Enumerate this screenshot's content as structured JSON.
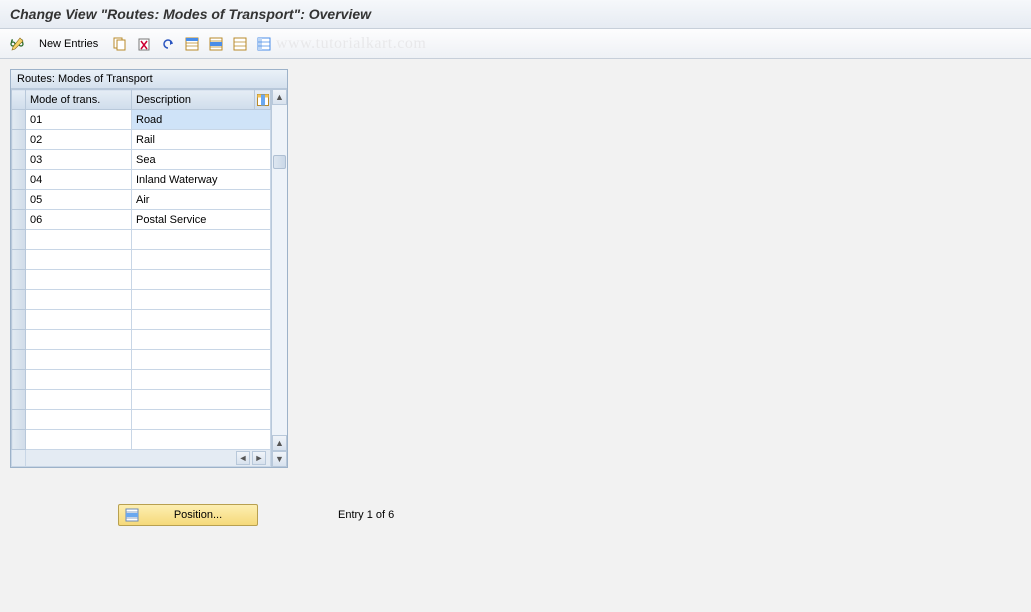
{
  "title": "Change View \"Routes: Modes of Transport\": Overview",
  "toolbar": {
    "new_entries_label": "New Entries"
  },
  "watermark": "www.tutorialkart.com",
  "table": {
    "caption": "Routes: Modes of Transport",
    "columns": {
      "col1": "Mode of trans.",
      "col2": "Description"
    },
    "rows": [
      {
        "mode": "01",
        "desc": "Road",
        "selected": true
      },
      {
        "mode": "02",
        "desc": "Rail",
        "selected": false
      },
      {
        "mode": "03",
        "desc": "Sea",
        "selected": false
      },
      {
        "mode": "04",
        "desc": "Inland Waterway",
        "selected": false
      },
      {
        "mode": "05",
        "desc": "Air",
        "selected": false
      },
      {
        "mode": "06",
        "desc": "Postal Service",
        "selected": false
      }
    ],
    "empty_rows": 11,
    "col_widths": {
      "selector": 14,
      "mode": 106,
      "desc": 120
    }
  },
  "footer": {
    "position_label": "Position...",
    "entry_text": "Entry 1 of 6"
  },
  "colors": {
    "bg": "#f2f2f2",
    "header_grad_top": "#f6f8fb",
    "header_grad_bot": "#e6ebf2",
    "border": "#9db2c9",
    "cell_border": "#c8d6e6",
    "selection_bg": "#cfe3f8",
    "btn_grad_top": "#fdefb2",
    "btn_grad_bot": "#f5d97a",
    "btn_border": "#b8a050"
  }
}
